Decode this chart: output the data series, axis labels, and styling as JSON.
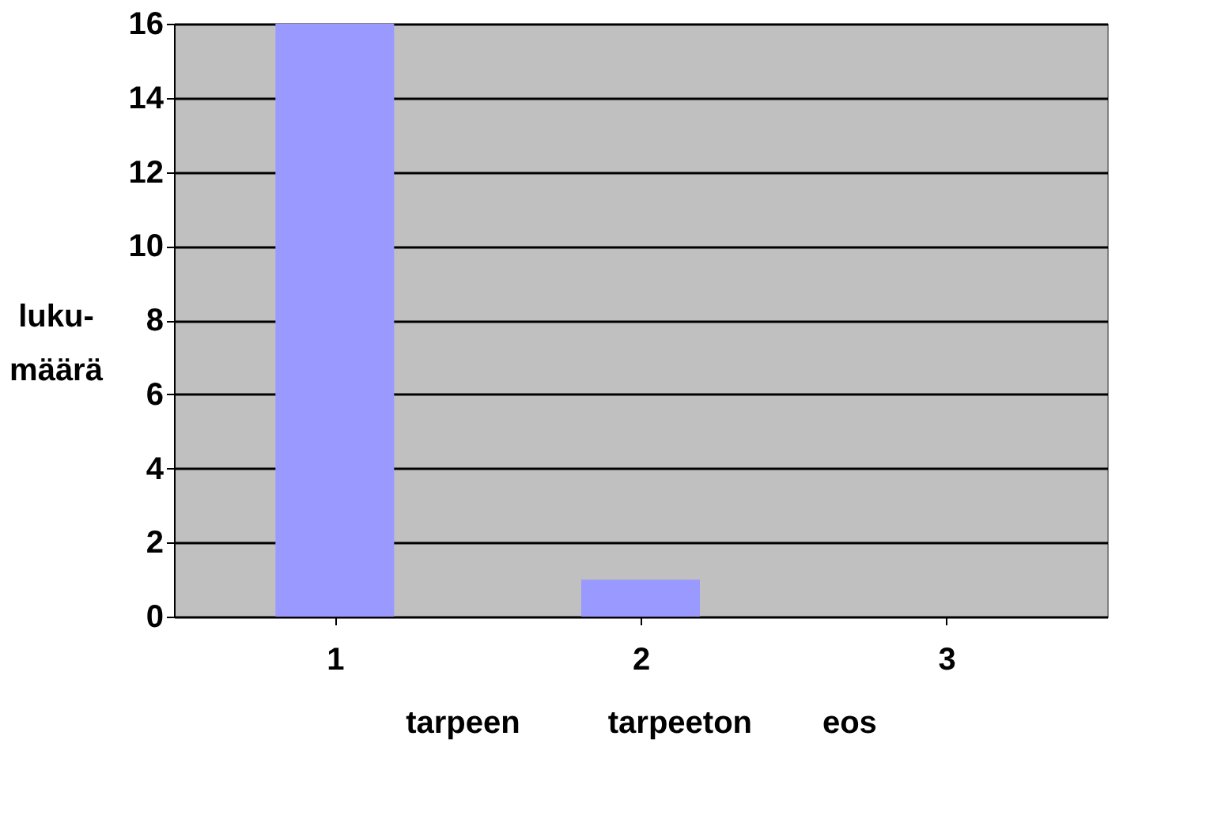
{
  "chart_data": {
    "type": "bar",
    "categories": [
      "1",
      "2",
      "3"
    ],
    "values": [
      16,
      1,
      0
    ],
    "color": "#9999ff",
    "ylabel": "luku-\nmäärä",
    "xlabel": "tarpeen          tarpeeton        eos",
    "ylim": [
      0,
      16
    ],
    "yticks": [
      0,
      2,
      4,
      6,
      8,
      10,
      12,
      14,
      16
    ],
    "grid": "y"
  }
}
